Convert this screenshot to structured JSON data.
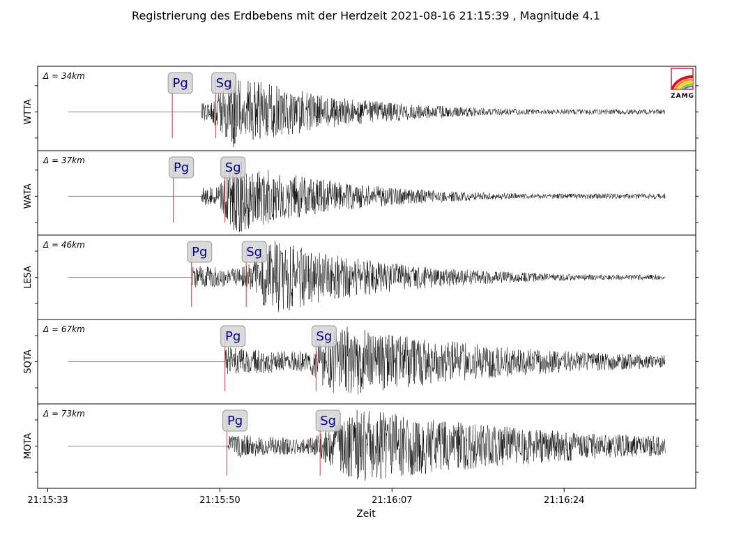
{
  "chart_data": {
    "type": "seismogram",
    "title": "Registrierung des Erdbebens mit der Herdzeit 2021-08-16 21:15:39 , Magnitude 4.1",
    "xlabel": "Zeit",
    "x_ticks": [
      "21:15:33",
      "21:15:50",
      "21:16:07",
      "21:16:24"
    ],
    "x_tick_seconds": [
      0,
      17,
      34,
      51
    ],
    "x_range_seconds": [
      -1,
      64
    ],
    "trace_range_seconds": [
      2,
      61
    ],
    "logo_text": "ZAMG",
    "colors": {
      "trace": "#000000",
      "pre_trace": "#888888",
      "pick_line": "#e03030",
      "pick_label": "#00008b",
      "pick_box": "#d3d3d3"
    },
    "stations": [
      {
        "name": "WTTA",
        "distance_label": "Δ = 34km",
        "onset_s": 15.2,
        "pg_s": 12.3,
        "sg_s": 16.6,
        "peak_s": 18.5,
        "amp": 1.0,
        "noise": 0.18,
        "decay": 11,
        "pg_label": "Pg",
        "sg_label": "Sg"
      },
      {
        "name": "WATA",
        "distance_label": "Δ = 37km",
        "onset_s": 15.2,
        "pg_s": 12.4,
        "sg_s": 17.5,
        "peak_s": 18.3,
        "amp": 1.0,
        "noise": 0.18,
        "decay": 11,
        "pg_label": "Pg",
        "sg_label": "Sg"
      },
      {
        "name": "LESA",
        "distance_label": "Δ = 46km",
        "onset_s": 14.2,
        "pg_s": 14.2,
        "sg_s": 19.6,
        "peak_s": 22.3,
        "amp": 1.0,
        "noise": 0.18,
        "decay": 12,
        "pg_label": "Pg",
        "sg_label": "Sg"
      },
      {
        "name": "SQTA",
        "distance_label": "Δ = 67km",
        "onset_s": 17.5,
        "pg_s": 17.5,
        "sg_s": 26.5,
        "peak_s": 28.6,
        "amp": 1.0,
        "noise": 0.25,
        "decay": 18,
        "pg_label": "Pg",
        "sg_label": "Sg"
      },
      {
        "name": "MOTA",
        "distance_label": "Δ = 73km",
        "onset_s": 17.8,
        "pg_s": 17.7,
        "sg_s": 26.9,
        "peak_s": 30.7,
        "amp": 1.0,
        "noise": 0.2,
        "decay": 22,
        "pg_label": "Pg",
        "sg_label": "Sg"
      }
    ]
  }
}
